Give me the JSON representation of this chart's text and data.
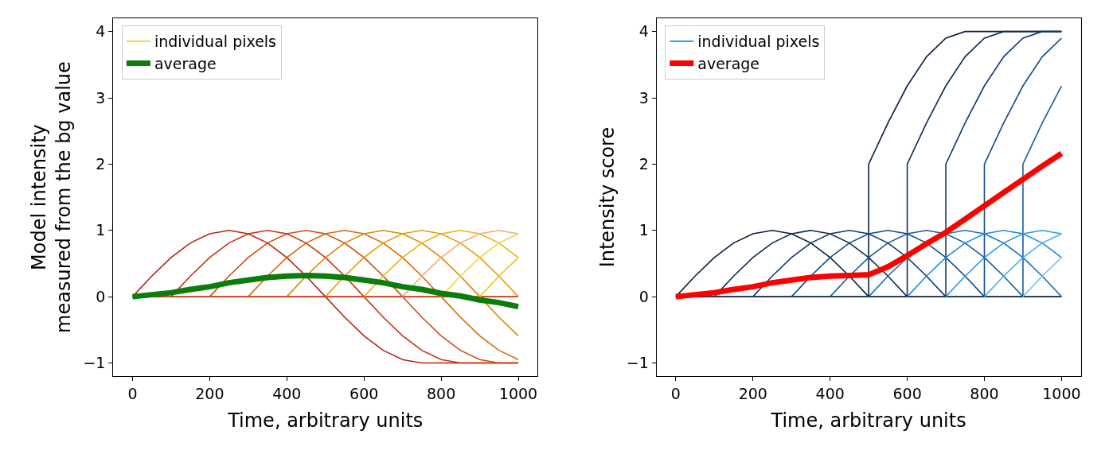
{
  "chart_data": [
    {
      "type": "line",
      "xlabel": "Time, arbitrary units",
      "ylabel": "Model intensity\nmeasured from the bg value",
      "xlim": [
        -50,
        1050
      ],
      "ylim": [
        -1.2,
        4.2
      ],
      "xticks": [
        0,
        200,
        400,
        600,
        800,
        1000
      ],
      "yticks": [
        -1,
        0,
        1,
        2,
        3,
        4
      ],
      "legend": "top left",
      "x": [
        0,
        50,
        100,
        150,
        200,
        250,
        300,
        350,
        400,
        450,
        500,
        550,
        600,
        650,
        700,
        750,
        800,
        850,
        900,
        950,
        1000
      ],
      "series": [
        {
          "color": "#c8300e",
          "values": [
            0,
            0,
            0,
            0,
            0,
            0,
            0,
            0,
            0,
            0,
            0,
            0,
            0,
            0,
            0,
            0,
            0,
            0,
            0,
            0,
            0
          ]
        },
        {
          "color": "#b82310",
          "values": [
            0,
            0.31,
            0.59,
            0.81,
            0.95,
            1,
            0.95,
            0.81,
            0.59,
            0.31,
            0,
            -0.31,
            -0.59,
            -0.81,
            -0.95,
            -1,
            -1,
            -1,
            -1,
            -1,
            -1
          ]
        },
        {
          "color": "#c63410",
          "values": [
            null,
            null,
            0,
            0.31,
            0.59,
            0.81,
            0.95,
            1,
            0.95,
            0.81,
            0.59,
            0.31,
            0,
            -0.31,
            -0.59,
            -0.81,
            -0.95,
            -1,
            -1,
            -1,
            -1
          ]
        },
        {
          "color": "#d04c0c",
          "values": [
            null,
            null,
            null,
            null,
            0,
            0.31,
            0.59,
            0.81,
            0.95,
            1,
            0.95,
            0.81,
            0.59,
            0.31,
            0,
            -0.31,
            -0.59,
            -0.81,
            -0.95,
            -1,
            -1
          ]
        },
        {
          "color": "#d86808",
          "values": [
            null,
            null,
            null,
            null,
            null,
            null,
            0,
            0.31,
            0.59,
            0.81,
            0.95,
            1,
            0.95,
            0.81,
            0.59,
            0.31,
            0,
            -0.31,
            -0.59,
            -0.81,
            -0.95
          ]
        },
        {
          "color": "#de8406",
          "values": [
            null,
            null,
            null,
            null,
            null,
            null,
            null,
            null,
            0,
            0.31,
            0.59,
            0.81,
            0.95,
            1,
            0.95,
            0.81,
            0.59,
            0.31,
            0,
            -0.31,
            -0.59
          ]
        },
        {
          "color": "#e49c06",
          "values": [
            null,
            null,
            null,
            null,
            null,
            null,
            null,
            null,
            null,
            null,
            0,
            0.31,
            0.59,
            0.81,
            0.95,
            1,
            0.95,
            0.81,
            0.59,
            0.31,
            0
          ]
        },
        {
          "color": "#ecb40a",
          "values": [
            null,
            null,
            null,
            null,
            null,
            null,
            null,
            null,
            null,
            null,
            null,
            null,
            0,
            0.31,
            0.59,
            0.81,
            0.95,
            1,
            0.95,
            0.81,
            0.59
          ]
        },
        {
          "color": "#f4a878",
          "values": [
            null,
            null,
            null,
            null,
            null,
            null,
            null,
            null,
            null,
            null,
            null,
            null,
            null,
            null,
            0,
            0.31,
            0.59,
            0.81,
            0.95,
            1,
            0.95
          ]
        },
        {
          "color": "#f2d050",
          "values": [
            null,
            null,
            null,
            null,
            null,
            null,
            null,
            null,
            null,
            null,
            null,
            null,
            null,
            null,
            null,
            null,
            0,
            0.31,
            0.59,
            0.81,
            0.95
          ]
        },
        {
          "name": "individual pixels",
          "color": "#f5c518",
          "values": [
            null,
            null,
            null,
            null,
            null,
            null,
            null,
            null,
            null,
            null,
            null,
            null,
            null,
            null,
            null,
            null,
            null,
            null,
            0,
            0.31,
            0.59
          ]
        },
        {
          "name": "average",
          "color": "#0a7d0a",
          "values": [
            0,
            0.03,
            0.06,
            0.11,
            0.15,
            0.21,
            0.25,
            0.29,
            0.31,
            0.32,
            0.31,
            0.29,
            0.25,
            0.21,
            0.15,
            0.11,
            0.05,
            0.01,
            -0.05,
            -0.09,
            -0.15
          ]
        }
      ]
    },
    {
      "type": "line",
      "xlabel": "Time, arbitrary units",
      "ylabel": "Intensity score",
      "xlim": [
        -50,
        1050
      ],
      "ylim": [
        -1.2,
        4.2
      ],
      "xticks": [
        0,
        200,
        400,
        600,
        800,
        1000
      ],
      "yticks": [
        -1,
        0,
        1,
        2,
        3,
        4
      ],
      "legend": "top left",
      "x": [
        0,
        50,
        100,
        150,
        200,
        250,
        300,
        350,
        400,
        450,
        500,
        550,
        600,
        650,
        700,
        750,
        800,
        850,
        900,
        950,
        1000
      ],
      "series": [
        {
          "color": "#0a1f3c",
          "values": [
            0,
            0,
            0,
            0,
            0,
            0,
            0,
            0,
            0,
            0,
            0,
            0,
            0,
            0,
            0,
            0,
            0,
            0,
            0,
            0,
            0
          ]
        },
        {
          "color": "#0a1f3c",
          "x": [
            0,
            50,
            100,
            150,
            200,
            250,
            300,
            350,
            400,
            450,
            500,
            500,
            550,
            600,
            650,
            700,
            750,
            800,
            850,
            900,
            950,
            1000
          ],
          "values": [
            0,
            0.31,
            0.59,
            0.81,
            0.95,
            1,
            0.95,
            0.81,
            0.59,
            0.31,
            0,
            2,
            2.62,
            3.18,
            3.62,
            3.9,
            4,
            4,
            4,
            4,
            4,
            4
          ]
        },
        {
          "color": "#0c2b55",
          "x": [
            100,
            150,
            200,
            250,
            300,
            350,
            400,
            450,
            500,
            550,
            600,
            600,
            650,
            700,
            750,
            800,
            850,
            900,
            950,
            1000
          ],
          "values": [
            0,
            0.31,
            0.59,
            0.81,
            0.95,
            1,
            0.95,
            0.81,
            0.59,
            0.31,
            0,
            2,
            2.62,
            3.18,
            3.62,
            3.9,
            4,
            4,
            4,
            4
          ]
        },
        {
          "color": "#0e3a70",
          "x": [
            200,
            250,
            300,
            350,
            400,
            450,
            500,
            550,
            600,
            650,
            700,
            700,
            750,
            800,
            850,
            900,
            950,
            1000
          ],
          "values": [
            0,
            0.31,
            0.59,
            0.81,
            0.95,
            1,
            0.95,
            0.81,
            0.59,
            0.31,
            0,
            2,
            2.62,
            3.18,
            3.62,
            3.9,
            4,
            4
          ]
        },
        {
          "color": "#104a8a",
          "x": [
            300,
            350,
            400,
            450,
            500,
            550,
            600,
            650,
            700,
            750,
            800,
            800,
            850,
            900,
            950,
            1000
          ],
          "values": [
            0,
            0.31,
            0.59,
            0.81,
            0.95,
            1,
            0.95,
            0.81,
            0.59,
            0.31,
            0,
            2,
            2.62,
            3.18,
            3.62,
            3.9
          ]
        },
        {
          "color": "#135ca3",
          "x": [
            400,
            450,
            500,
            550,
            600,
            650,
            700,
            750,
            800,
            850,
            900,
            900,
            950,
            1000
          ],
          "values": [
            0,
            0.31,
            0.59,
            0.81,
            0.95,
            1,
            0.95,
            0.81,
            0.59,
            0.31,
            0,
            2,
            2.62,
            3.18
          ]
        },
        {
          "color": "#176fbb",
          "x": [
            500,
            550,
            600,
            650,
            700,
            750,
            800,
            850,
            900,
            950,
            1000
          ],
          "values": [
            0,
            0.31,
            0.59,
            0.81,
            0.95,
            1,
            0.95,
            0.81,
            0.59,
            0.31,
            0
          ]
        },
        {
          "name": "individual pixels",
          "color": "#1b8ae0",
          "x": [
            600,
            650,
            700,
            750,
            800,
            850,
            900,
            950,
            1000
          ],
          "values": [
            0,
            0.31,
            0.59,
            0.81,
            0.95,
            1,
            0.95,
            0.81,
            0.59
          ]
        },
        {
          "color": "#2a9ae0",
          "x": [
            700,
            750,
            800,
            850,
            900,
            950,
            1000
          ],
          "values": [
            0,
            0.31,
            0.59,
            0.81,
            0.95,
            1,
            0.95
          ]
        },
        {
          "color": "#45b0ec",
          "x": [
            800,
            850,
            900,
            950,
            1000
          ],
          "values": [
            0,
            0.31,
            0.59,
            0.81,
            0.95
          ]
        },
        {
          "color": "#6cc6f4",
          "x": [
            900,
            950,
            1000
          ],
          "values": [
            0,
            0.31,
            0.59
          ]
        },
        {
          "name": "average",
          "color": "#ff0000",
          "values": [
            0,
            0.03,
            0.06,
            0.11,
            0.15,
            0.21,
            0.25,
            0.29,
            0.31,
            0.32,
            0.33,
            0.45,
            0.62,
            0.8,
            0.97,
            1.17,
            1.37,
            1.57,
            1.77,
            1.97,
            2.16
          ]
        }
      ]
    }
  ]
}
